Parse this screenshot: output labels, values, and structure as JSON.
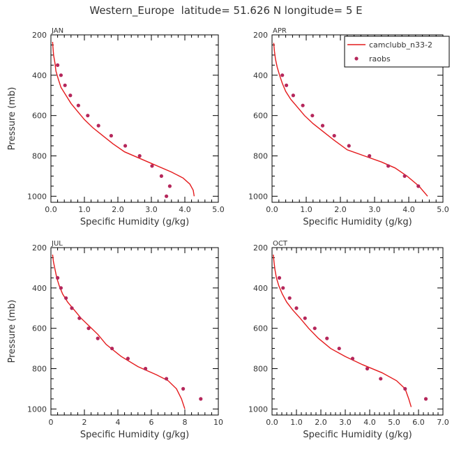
{
  "title": "Western_Europe  latitude= 51.626 N longitude= 5 E",
  "legend": {
    "line_label": "camclubb_n33-2",
    "marker_label": "raobs",
    "line_color": "#e41a1c",
    "marker_color": "#b5275b"
  },
  "chart_data": [
    {
      "type": "line",
      "panel": "JAN",
      "xlabel": "Specific Humidity (g/kg)",
      "ylabel": "Pressure (mb)",
      "xlim": [
        0.0,
        5.0
      ],
      "ylim": [
        1030,
        200
      ],
      "xticks": [
        "0.0",
        "1.0",
        "2.0",
        "3.0",
        "4.0",
        "5.0"
      ],
      "yticks": [
        "200",
        "400",
        "600",
        "800",
        "1000"
      ],
      "x_tick_values": [
        0,
        1,
        2,
        3,
        4,
        5
      ],
      "x_minor_step": 0.2,
      "series": [
        {
          "kind": "line",
          "x": [
            0.05,
            0.06,
            0.08,
            0.12,
            0.15,
            0.22,
            0.3,
            0.45,
            0.6,
            0.8,
            1.0,
            1.25,
            1.55,
            1.85,
            2.2,
            2.9,
            3.6,
            3.95,
            4.15,
            4.25,
            4.28
          ],
          "y": [
            235,
            260,
            300,
            340,
            380,
            420,
            460,
            500,
            540,
            580,
            620,
            660,
            700,
            740,
            780,
            830,
            880,
            910,
            940,
            970,
            1000
          ]
        },
        {
          "kind": "scatter",
          "x": [
            0.2,
            0.3,
            0.42,
            0.58,
            0.82,
            1.1,
            1.42,
            1.8,
            2.22,
            2.65,
            3.02,
            3.3,
            3.55,
            3.45
          ],
          "y": [
            350,
            400,
            450,
            500,
            550,
            600,
            650,
            700,
            750,
            800,
            850,
            900,
            950,
            1000
          ]
        }
      ]
    },
    {
      "type": "line",
      "panel": "APR",
      "xlabel": "Specific Humidity (g/kg)",
      "ylabel": "",
      "xlim": [
        0.0,
        5.0
      ],
      "ylim": [
        1030,
        200
      ],
      "xticks": [
        "0.0",
        "1.0",
        "2.0",
        "3.0",
        "4.0",
        "5.0"
      ],
      "yticks": [
        "200",
        "400",
        "600",
        "800",
        "1000"
      ],
      "x_tick_values": [
        0,
        1,
        2,
        3,
        4,
        5
      ],
      "x_minor_step": 0.2,
      "series": [
        {
          "kind": "line",
          "x": [
            0.05,
            0.07,
            0.1,
            0.15,
            0.22,
            0.3,
            0.4,
            0.55,
            0.75,
            0.95,
            1.2,
            1.5,
            1.8,
            2.2,
            2.7,
            3.2,
            3.6,
            3.95,
            4.3,
            4.55
          ],
          "y": [
            240,
            280,
            320,
            360,
            400,
            440,
            480,
            520,
            560,
            600,
            640,
            680,
            720,
            770,
            800,
            830,
            860,
            900,
            950,
            1000
          ]
        },
        {
          "kind": "scatter",
          "x": [
            0.3,
            0.42,
            0.62,
            0.9,
            1.18,
            1.48,
            1.82,
            2.25,
            2.85,
            3.4,
            3.88,
            4.28
          ],
          "y": [
            400,
            450,
            500,
            550,
            600,
            650,
            700,
            750,
            800,
            850,
            900,
            950
          ]
        }
      ]
    },
    {
      "type": "line",
      "panel": "JUL",
      "xlabel": "Specific Humidity (g/kg)",
      "ylabel": "Pressure (mb)",
      "xlim": [
        0,
        10
      ],
      "ylim": [
        1030,
        200
      ],
      "xticks": [
        "0",
        "2",
        "4",
        "6",
        "8",
        "10"
      ],
      "yticks": [
        "200",
        "400",
        "600",
        "800",
        "1000"
      ],
      "x_tick_values": [
        0,
        2,
        4,
        6,
        8,
        10
      ],
      "x_minor_step": 0.4,
      "series": [
        {
          "kind": "line",
          "x": [
            0.1,
            0.15,
            0.25,
            0.35,
            0.5,
            0.7,
            1.0,
            1.4,
            1.8,
            2.3,
            2.8,
            3.3,
            4.2,
            5.2,
            6.3,
            7.0,
            7.5,
            7.8,
            8.0
          ],
          "y": [
            235,
            270,
            310,
            350,
            390,
            430,
            470,
            510,
            550,
            590,
            630,
            680,
            740,
            790,
            830,
            860,
            900,
            950,
            1000
          ]
        },
        {
          "kind": "scatter",
          "x": [
            0.4,
            0.6,
            0.9,
            1.25,
            1.7,
            2.25,
            2.8,
            3.65,
            4.6,
            5.65,
            6.9,
            7.9,
            8.95
          ],
          "y": [
            350,
            400,
            450,
            500,
            550,
            600,
            650,
            700,
            750,
            800,
            850,
            900,
            950
          ]
        }
      ]
    },
    {
      "type": "line",
      "panel": "OCT",
      "xlabel": "Specific Humidity (g/kg)",
      "ylabel": "",
      "xlim": [
        0.0,
        7.0
      ],
      "ylim": [
        1030,
        200
      ],
      "xticks": [
        "0.0",
        "1.0",
        "2.0",
        "3.0",
        "4.0",
        "5.0",
        "6.0",
        "7.0"
      ],
      "yticks": [
        "200",
        "400",
        "600",
        "800",
        "1000"
      ],
      "x_tick_values": [
        0,
        1,
        2,
        3,
        4,
        5,
        6,
        7
      ],
      "x_minor_step": 0.2,
      "series": [
        {
          "kind": "line",
          "x": [
            0.05,
            0.08,
            0.12,
            0.18,
            0.28,
            0.42,
            0.6,
            0.85,
            1.15,
            1.5,
            1.9,
            2.4,
            3.0,
            3.7,
            4.5,
            5.1,
            5.45,
            5.6,
            5.7
          ],
          "y": [
            235,
            270,
            310,
            350,
            390,
            430,
            470,
            510,
            550,
            600,
            650,
            700,
            740,
            780,
            820,
            860,
            900,
            950,
            990
          ]
        },
        {
          "kind": "scatter",
          "x": [
            0.3,
            0.45,
            0.72,
            1.0,
            1.35,
            1.75,
            2.25,
            2.75,
            3.3,
            3.9,
            4.45,
            5.45,
            6.3
          ],
          "y": [
            350,
            400,
            450,
            500,
            550,
            600,
            650,
            700,
            750,
            800,
            850,
            900,
            950
          ]
        }
      ]
    }
  ]
}
